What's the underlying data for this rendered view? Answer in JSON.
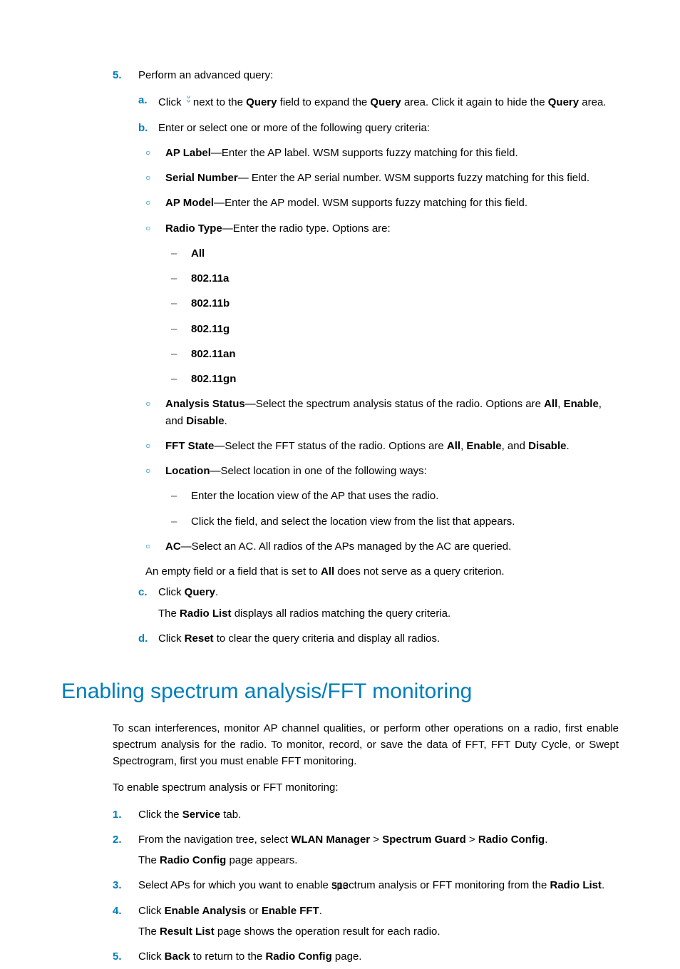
{
  "colors": {
    "accent": "#007dba",
    "text": "#000000",
    "background": "#ffffff",
    "icon_blue": "#5a8bb0"
  },
  "page_number": "513",
  "section1": {
    "step5": {
      "num": "5.",
      "text": "Perform an advanced query:",
      "a": {
        "marker": "a.",
        "pre": "Click ",
        "post_1": " next to the ",
        "bold_1": "Query",
        "post_2": " field to expand the ",
        "bold_2": "Query",
        "post_3": " area. Click it again to hide the ",
        "bold_3": "Query",
        "post_4": " area."
      },
      "b": {
        "marker": "b.",
        "text": "Enter or select one or more of the following query criteria:"
      },
      "criteria": {
        "ap_label": {
          "label": "AP Label",
          "text": "—Enter the AP label. WSM supports fuzzy matching for this field."
        },
        "serial": {
          "label": "Serial Number",
          "text": "— Enter the AP serial number. WSM supports fuzzy matching for this field."
        },
        "ap_model": {
          "label": "AP Model",
          "text": "—Enter the AP model. WSM supports fuzzy matching for this field."
        },
        "radio_type": {
          "label": "Radio Type",
          "text": "—Enter the radio type. Options are:"
        },
        "radio_options": {
          "o1": "All",
          "o2": "802.11a",
          "o3": "802.11b",
          "o4": "802.11g",
          "o5": "802.11an",
          "o6": "802.11gn"
        },
        "analysis": {
          "label": "Analysis Status",
          "t1": "—Select the spectrum analysis status of the radio. Options are ",
          "b1": "All",
          "t2": ", ",
          "b2": "Enable",
          "t3": ", and ",
          "b3": "Disable",
          "t4": "."
        },
        "fft": {
          "label": "FFT State",
          "t1": "—Select the FFT status of the radio. Options are ",
          "b1": "All",
          "t2": ", ",
          "b2": "Enable",
          "t3": ", and ",
          "b3": "Disable",
          "t4": "."
        },
        "location": {
          "label": "Location",
          "text": "—Select location in one of the following ways:",
          "sub1": "Enter the location view of the AP that uses the radio.",
          "sub2": "Click the field, and select the location view from the list that appears."
        },
        "ac": {
          "label": "AC",
          "text": "—Select an AC. All radios of the APs managed by the AC are queried."
        }
      },
      "empty_note": {
        "t1": "An empty field or a field that is set to ",
        "b1": "All",
        "t2": " does not serve as a query criterion."
      },
      "c": {
        "marker": "c.",
        "t1": "Click ",
        "b1": "Query",
        "t2": ".",
        "follow_t1": "The ",
        "follow_b1": "Radio List",
        "follow_t2": " displays all radios matching the query criteria."
      },
      "d": {
        "marker": "d.",
        "t1": "Click ",
        "b1": "Reset",
        "t2": " to clear the query criteria and display all radios."
      }
    }
  },
  "section2": {
    "heading": "Enabling spectrum analysis/FFT monitoring",
    "intro": "To scan interferences, monitor AP channel qualities, or perform other operations on a radio, first enable spectrum analysis for the radio. To monitor, record, or save the data of FFT, FFT Duty Cycle, or Swept Spectrogram, first you must enable FFT monitoring.",
    "lead": "To enable spectrum analysis or FFT monitoring:",
    "steps": {
      "s1": {
        "num": "1.",
        "t1": "Click the ",
        "b1": "Service",
        "t2": " tab."
      },
      "s2": {
        "num": "2.",
        "t1": "From the navigation tree, select ",
        "b1": "WLAN Manager",
        "sep1": " > ",
        "b2": "Spectrum Guard",
        "sep2": " > ",
        "b3": "Radio Config",
        "t2": ".",
        "follow_t1": "The ",
        "follow_b1": "Radio Config",
        "follow_t2": " page appears."
      },
      "s3": {
        "num": "3.",
        "t1": "Select APs for which you want to enable spectrum analysis or FFT monitoring from the ",
        "b1": "Radio List",
        "t2": "."
      },
      "s4": {
        "num": "4.",
        "t1": "Click ",
        "b1": "Enable Analysis",
        "t2": " or ",
        "b2": "Enable FFT",
        "t3": ".",
        "follow_t1": "The ",
        "follow_b1": "Result List",
        "follow_t2": " page shows the operation result for each radio."
      },
      "s5": {
        "num": "5.",
        "t1": "Click ",
        "b1": "Back",
        "t2": " to return to the ",
        "b2": "Radio Config",
        "t3": " page."
      }
    }
  }
}
